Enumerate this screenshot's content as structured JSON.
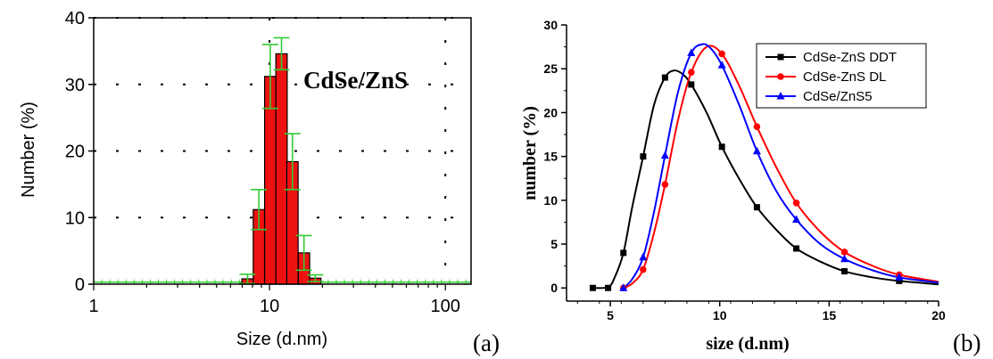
{
  "chart_data": [
    {
      "type": "bar",
      "panel_label": "(a)",
      "inset_label": "CdSe/ZnS",
      "xlabel": "Size (d.nm)",
      "ylabel": "Number (%)",
      "x_scale": "log",
      "xlim": [
        1,
        140
      ],
      "ylim": [
        0,
        40
      ],
      "xticks": [
        1,
        10,
        100
      ],
      "xtick_labels": [
        "1",
        "10",
        "100"
      ],
      "yticks": [
        0,
        10,
        20,
        30,
        40
      ],
      "ytick_labels": [
        "0",
        "10",
        "20",
        "30",
        "40"
      ],
      "grid": "dashed",
      "bar_color": "#ee1111",
      "errorbar_color": "#33cc33",
      "baseline_color": "#33cc33",
      "x": [
        7.5,
        8.7,
        10.1,
        11.7,
        13.5,
        15.7,
        18.2
      ],
      "values": [
        0.8,
        11.2,
        31.2,
        34.6,
        18.4,
        4.7,
        0.9
      ],
      "errors": [
        0.7,
        3.0,
        4.8,
        2.4,
        4.2,
        2.6,
        0.5
      ]
    },
    {
      "type": "line",
      "panel_label": "(b)",
      "xlabel": "size (d.nm)",
      "ylabel": "number (%)",
      "xlim": [
        3,
        20
      ],
      "ylim": [
        -1.5,
        30
      ],
      "xticks": [
        5,
        10,
        15,
        20
      ],
      "xtick_labels": [
        "5",
        "10",
        "15",
        "20"
      ],
      "yticks": [
        0,
        5,
        10,
        15,
        20,
        25,
        30
      ],
      "ytick_labels": [
        "0",
        "5",
        "10",
        "15",
        "20",
        "25",
        "30"
      ],
      "legend_position": "top-right",
      "series": [
        {
          "name": "CdSe-ZnS DDT",
          "color": "#000000",
          "marker": "square",
          "x": [
            4.2,
            4.9,
            5.6,
            6.5,
            7.5,
            8.7,
            10.1,
            11.7,
            13.5,
            15.7,
            18.2
          ],
          "y": [
            0,
            0,
            4.0,
            15.0,
            24.0,
            23.2,
            16.1,
            9.2,
            4.5,
            1.9,
            0.8
          ],
          "curve_x": [
            4.2,
            4.9,
            5.2,
            5.6,
            6.0,
            6.5,
            7.0,
            7.5,
            7.9,
            8.3,
            8.7,
            9.4,
            10.1,
            10.9,
            11.7,
            12.6,
            13.5,
            14.6,
            15.7,
            17.0,
            18.2,
            20
          ],
          "curve_y": [
            0,
            0.1,
            1.2,
            4.0,
            9.2,
            15.0,
            20.9,
            24.0,
            24.8,
            24.4,
            23.2,
            20.0,
            16.1,
            12.4,
            9.2,
            6.6,
            4.5,
            3.0,
            1.9,
            1.2,
            0.8,
            0.4
          ]
        },
        {
          "name": "CdSe-ZnS DL",
          "color": "#ff0000",
          "marker": "circle",
          "x": [
            5.6,
            6.5,
            7.5,
            8.7,
            10.1,
            11.7,
            13.5,
            15.7,
            18.2
          ],
          "y": [
            0,
            2.1,
            11.8,
            24.6,
            26.7,
            18.4,
            9.7,
            4.1,
            1.5
          ],
          "curve_x": [
            5.6,
            6.0,
            6.5,
            7.0,
            7.5,
            8.1,
            8.7,
            9.4,
            10.1,
            10.9,
            11.7,
            12.6,
            13.5,
            14.6,
            15.7,
            17.0,
            18.2,
            20
          ],
          "curve_y": [
            0,
            0.5,
            2.1,
            6.3,
            11.8,
            19.2,
            24.6,
            27.5,
            26.7,
            23.0,
            18.4,
            13.7,
            9.7,
            6.4,
            4.1,
            2.5,
            1.5,
            0.7
          ]
        },
        {
          "name": "CdSe/ZnS5",
          "color": "#0000ff",
          "marker": "triangle",
          "x": [
            5.6,
            6.5,
            7.5,
            8.7,
            10.1,
            11.7,
            13.5,
            15.7,
            18.2
          ],
          "y": [
            0,
            3.5,
            15.1,
            26.8,
            25.4,
            15.6,
            7.8,
            3.3,
            1.2
          ],
          "curve_x": [
            5.6,
            6.0,
            6.5,
            7.0,
            7.5,
            8.1,
            8.7,
            9.2,
            9.6,
            10.1,
            10.9,
            11.7,
            12.6,
            13.5,
            14.6,
            15.7,
            17.0,
            18.2,
            20
          ],
          "curve_y": [
            0,
            1.0,
            3.5,
            8.7,
            15.1,
            22.4,
            26.8,
            27.8,
            27.3,
            25.4,
            20.8,
            15.6,
            11.0,
            7.8,
            5.0,
            3.3,
            2.0,
            1.2,
            0.6
          ]
        }
      ]
    }
  ]
}
